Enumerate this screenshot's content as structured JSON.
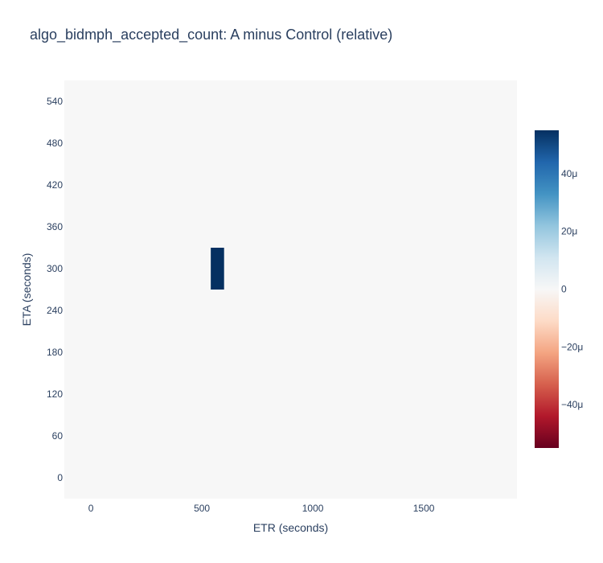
{
  "chart_data": {
    "type": "heatmap",
    "title": "algo_bidmph_accepted_count: A minus Control (relative)",
    "xlabel": "ETR (seconds)",
    "ylabel": "ETA (seconds)",
    "xlim": [
      -120,
      1920
    ],
    "ylim": [
      -30,
      570
    ],
    "x_ticks": [
      0,
      500,
      1000,
      1500
    ],
    "x_tick_labels": [
      "0",
      "500",
      "1000",
      "1500"
    ],
    "y_ticks": [
      0,
      60,
      120,
      180,
      240,
      300,
      360,
      420,
      480,
      540
    ],
    "y_tick_labels": [
      "0",
      "60",
      "120",
      "180",
      "240",
      "300",
      "360",
      "420",
      "480",
      "540"
    ],
    "background_value": 0,
    "cells": [
      {
        "x0": 540,
        "x1": 600,
        "y0": 270,
        "y1": 330,
        "value": 5.5e-05
      }
    ],
    "colorscale": {
      "name": "RdBu",
      "zmin": -5.5e-05,
      "zmax": 5.5e-05,
      "stops": [
        "#67001f",
        "#b2182b",
        "#d6604d",
        "#f4a582",
        "#fddbc7",
        "#f7f7f7",
        "#d1e5f0",
        "#92c5de",
        "#4393c3",
        "#2166ac",
        "#053061"
      ],
      "ticks": [
        4e-05,
        2e-05,
        0,
        -2e-05,
        -4e-05
      ],
      "tick_labels": [
        "40μ",
        "20μ",
        "0",
        "−20μ",
        "−40μ"
      ]
    },
    "grid": false,
    "plot_bg": "#f7f7f7"
  }
}
